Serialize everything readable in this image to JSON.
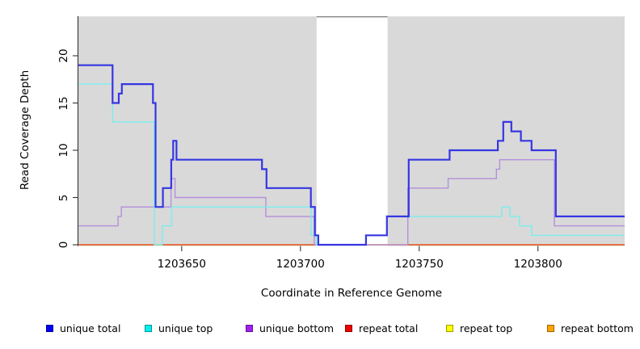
{
  "chart_data": {
    "type": "line",
    "subtype": "step-coverage-plot",
    "title": "",
    "xlabel": "Coordinate in Reference Genome",
    "ylabel": "Read Coverage Depth",
    "xlim": [
      1203606.5,
      1203836.5
    ],
    "ylim": [
      0,
      24.2
    ],
    "grid": false,
    "xticks": [
      {
        "value": 1203650,
        "label": "1203650"
      },
      {
        "value": 1203700,
        "label": "1203700"
      },
      {
        "value": 1203750,
        "label": "1203750"
      },
      {
        "value": 1203800,
        "label": "1203800"
      }
    ],
    "yticks": [
      {
        "value": 0,
        "label": "0"
      },
      {
        "value": 5,
        "label": "5"
      },
      {
        "value": 10,
        "label": "10"
      },
      {
        "value": 15,
        "label": "15"
      },
      {
        "value": 20,
        "label": "20"
      }
    ],
    "background_color": "#ffffff",
    "shaded_region_color": "#d9d9d9",
    "shaded_regions": [
      {
        "x1": 1203606.5,
        "x2": 1203706.8
      },
      {
        "x1": 1203736.7,
        "x2": 1203836.5
      }
    ],
    "gap_region": {
      "x1": 1203706.8,
      "x2": 1203736.7,
      "top_line_color": "#8c8c8c"
    },
    "series": [
      {
        "name": "repeat bottom",
        "line_color": "#FFA500",
        "line_width": 1.6,
        "steps": [
          [
            1203606.5,
            0
          ],
          [
            1203836.5,
            0
          ]
        ]
      },
      {
        "name": "repeat top",
        "line_color": "#F0F000",
        "line_width": 1.3,
        "steps": [
          [
            1203606.5,
            0
          ],
          [
            1203836.5,
            0
          ]
        ]
      },
      {
        "name": "repeat total",
        "line_color": "#DC3C3C",
        "line_width": 1.3,
        "steps": [
          [
            1203606.5,
            0
          ],
          [
            1203836.5,
            0
          ]
        ]
      },
      {
        "name": "unique bottom",
        "line_color": "#B48FDC",
        "line_width": 1.4,
        "steps": [
          [
            1203606.5,
            2
          ],
          [
            1203623.2,
            3
          ],
          [
            1203624.6,
            4
          ],
          [
            1203645.5,
            7
          ],
          [
            1203647.2,
            5
          ],
          [
            1203685.4,
            3
          ],
          [
            1203705.8,
            0
          ],
          [
            1203745.2,
            6
          ],
          [
            1203762.2,
            7
          ],
          [
            1203782.5,
            8
          ],
          [
            1203783.9,
            9
          ],
          [
            1203806.9,
            2
          ],
          [
            1203836.5,
            2
          ]
        ]
      },
      {
        "name": "unique top",
        "line_color": "#7BEDED",
        "line_width": 1.4,
        "steps": [
          [
            1203606.5,
            17
          ],
          [
            1203620.9,
            13
          ],
          [
            1203638.4,
            0
          ],
          [
            1203641.8,
            2
          ],
          [
            1203645.8,
            4
          ],
          [
            1203704.4,
            1
          ],
          [
            1203706.8,
            0
          ],
          [
            1203727.6,
            1
          ],
          [
            1203736.4,
            3
          ],
          [
            1203784.8,
            4
          ],
          [
            1203788.2,
            3
          ],
          [
            1203792.2,
            2
          ],
          [
            1203797.3,
            1
          ],
          [
            1203836.5,
            1
          ]
        ]
      },
      {
        "name": "unique total",
        "line_color": "#3636E3",
        "line_width": 2.2,
        "steps": [
          [
            1203606.5,
            19
          ],
          [
            1203620.9,
            15
          ],
          [
            1203623.5,
            16
          ],
          [
            1203624.8,
            17
          ],
          [
            1203637.9,
            15
          ],
          [
            1203639,
            4
          ],
          [
            1203642.1,
            6
          ],
          [
            1203645.6,
            9
          ],
          [
            1203646.4,
            11
          ],
          [
            1203647.8,
            9
          ],
          [
            1203683.8,
            8
          ],
          [
            1203685.7,
            6
          ],
          [
            1203704.4,
            4
          ],
          [
            1203706.1,
            1
          ],
          [
            1203707.5,
            0
          ],
          [
            1203727.6,
            1
          ],
          [
            1203736.4,
            3
          ],
          [
            1203745.6,
            9
          ],
          [
            1203762.8,
            10
          ],
          [
            1203783.1,
            11
          ],
          [
            1203785.4,
            13
          ],
          [
            1203788.8,
            12
          ],
          [
            1203792.8,
            11
          ],
          [
            1203797.3,
            10
          ],
          [
            1203807.5,
            3
          ],
          [
            1203836.5,
            3
          ]
        ]
      }
    ],
    "legend_position": "bottom",
    "legend": [
      {
        "label": "unique total",
        "swatch_color": "#0000F5"
      },
      {
        "label": "unique top",
        "swatch_color": "#00EEEE"
      },
      {
        "label": "unique bottom",
        "swatch_color": "#A020F0"
      },
      {
        "label": "repeat total",
        "swatch_color": "#EE0000"
      },
      {
        "label": "repeat top",
        "swatch_color": "#FFFF00"
      },
      {
        "label": "repeat bottom",
        "swatch_color": "#FFA500"
      }
    ]
  }
}
